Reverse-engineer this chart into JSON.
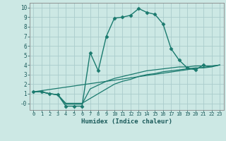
{
  "xlabel": "Humidex (Indice chaleur)",
  "background_color": "#cce8e4",
  "grid_color": "#aacccc",
  "line_color": "#1a7a6e",
  "xlim": [
    -0.5,
    23.5
  ],
  "ylim": [
    -0.7,
    10.5
  ],
  "xticks": [
    0,
    1,
    2,
    3,
    4,
    5,
    6,
    7,
    8,
    9,
    10,
    11,
    12,
    13,
    14,
    15,
    16,
    17,
    18,
    19,
    20,
    21,
    22,
    23
  ],
  "yticks": [
    0,
    1,
    2,
    3,
    4,
    5,
    6,
    7,
    8,
    9,
    10
  ],
  "ytick_labels": [
    "-0",
    "1",
    "2",
    "3",
    "4",
    "5",
    "6",
    "7",
    "8",
    "9",
    "10"
  ],
  "line1_x": [
    0,
    1,
    2,
    3,
    4,
    5,
    6,
    7,
    8,
    9,
    10,
    11,
    12,
    13,
    14,
    15,
    16,
    17,
    18,
    19,
    20,
    21
  ],
  "line1_y": [
    1.2,
    1.2,
    1.0,
    0.9,
    -0.3,
    -0.3,
    -0.3,
    5.3,
    3.4,
    7.0,
    8.9,
    9.0,
    9.2,
    9.9,
    9.5,
    9.3,
    8.3,
    5.7,
    4.5,
    3.7,
    3.5,
    4.0
  ],
  "line2_x": [
    0,
    1,
    2,
    3,
    4,
    5,
    6,
    7,
    8,
    9,
    10,
    11,
    12,
    13,
    14,
    15,
    16,
    17,
    18,
    19,
    20,
    21,
    22,
    23
  ],
  "line2_y": [
    1.2,
    1.2,
    1.0,
    0.9,
    -0.1,
    -0.1,
    -0.1,
    1.5,
    1.9,
    2.3,
    2.6,
    2.8,
    3.0,
    3.2,
    3.4,
    3.5,
    3.6,
    3.7,
    3.8,
    3.8,
    3.9,
    3.9,
    3.9,
    4.0
  ],
  "line3_x": [
    0,
    1,
    2,
    3,
    4,
    5,
    6,
    7,
    8,
    9,
    10,
    11,
    12,
    13,
    14,
    15,
    16,
    17,
    18,
    19,
    20,
    21,
    22,
    23
  ],
  "line3_y": [
    1.2,
    1.2,
    1.0,
    0.9,
    0.0,
    0.0,
    0.0,
    0.5,
    1.0,
    1.5,
    2.0,
    2.3,
    2.5,
    2.8,
    3.0,
    3.1,
    3.3,
    3.4,
    3.5,
    3.6,
    3.7,
    3.7,
    3.8,
    4.0
  ],
  "line4_x": [
    0,
    23
  ],
  "line4_y": [
    1.2,
    4.0
  ]
}
